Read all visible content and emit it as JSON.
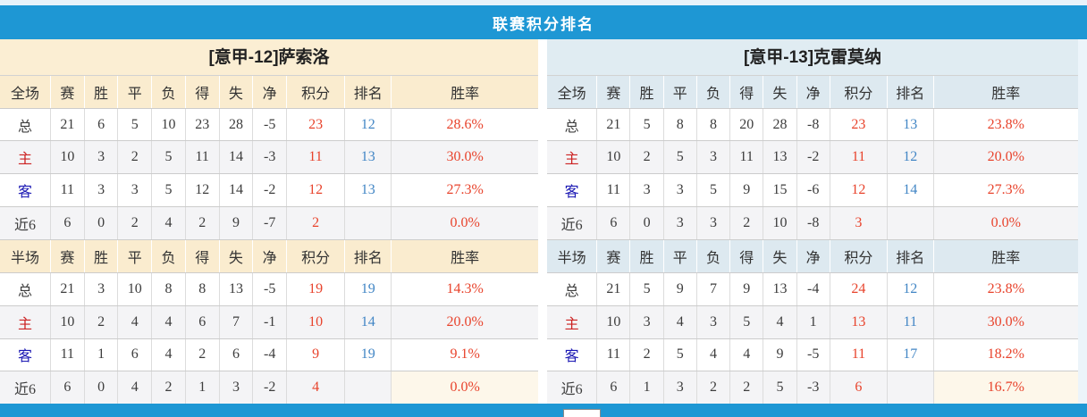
{
  "title_bar": {
    "title": "联赛积分排名"
  },
  "headers": {
    "stats": [
      "赛",
      "胜",
      "平",
      "负",
      "得",
      "失",
      "净"
    ],
    "points": "积分",
    "rank": "排名",
    "rate": "胜率"
  },
  "colors": {
    "accent_blue": "#1e97d4",
    "left_header_bg": "#fbeed3",
    "right_header_bg": "#e0ecf2",
    "points_red": "#e8432c",
    "rank_blue": "#4286c5",
    "home_label_red": "#cc2222",
    "away_label_blue": "#1a17b3",
    "row_alt_gray": "#f4f4f6",
    "rate_highlight_bg": "#fdf7ea"
  },
  "tables": [
    {
      "team_title": "[意甲-12]萨索洛",
      "sections": [
        {
          "scope_label": "全场",
          "rows": [
            {
              "label": "总",
              "label_class": "lab-total",
              "stats": [
                "21",
                "6",
                "5",
                "10",
                "23",
                "28",
                "-5"
              ],
              "points": "23",
              "rank": "12",
              "rate": "28.6%",
              "rate_highlight": false
            },
            {
              "label": "主",
              "label_class": "lab-home",
              "stats": [
                "10",
                "3",
                "2",
                "5",
                "11",
                "14",
                "-3"
              ],
              "points": "11",
              "rank": "13",
              "rate": "30.0%",
              "rate_highlight": false
            },
            {
              "label": "客",
              "label_class": "lab-away",
              "stats": [
                "11",
                "3",
                "3",
                "5",
                "12",
                "14",
                "-2"
              ],
              "points": "12",
              "rank": "13",
              "rate": "27.3%",
              "rate_highlight": false
            },
            {
              "label": "近6",
              "label_class": "lab-recent",
              "stats": [
                "6",
                "0",
                "2",
                "4",
                "2",
                "9",
                "-7"
              ],
              "points": "2",
              "rank": "",
              "rate": "0.0%",
              "rate_highlight": false
            }
          ]
        },
        {
          "scope_label": "半场",
          "rows": [
            {
              "label": "总",
              "label_class": "lab-total",
              "stats": [
                "21",
                "3",
                "10",
                "8",
                "8",
                "13",
                "-5"
              ],
              "points": "19",
              "rank": "19",
              "rate": "14.3%",
              "rate_highlight": false
            },
            {
              "label": "主",
              "label_class": "lab-home",
              "stats": [
                "10",
                "2",
                "4",
                "4",
                "6",
                "7",
                "-1"
              ],
              "points": "10",
              "rank": "14",
              "rate": "20.0%",
              "rate_highlight": false
            },
            {
              "label": "客",
              "label_class": "lab-away",
              "stats": [
                "11",
                "1",
                "6",
                "4",
                "2",
                "6",
                "-4"
              ],
              "points": "9",
              "rank": "19",
              "rate": "9.1%",
              "rate_highlight": false
            },
            {
              "label": "近6",
              "label_class": "lab-recent",
              "stats": [
                "6",
                "0",
                "4",
                "2",
                "1",
                "3",
                "-2"
              ],
              "points": "4",
              "rank": "",
              "rate": "0.0%",
              "rate_highlight": true
            }
          ]
        }
      ]
    },
    {
      "team_title": "[意甲-13]克雷莫纳",
      "sections": [
        {
          "scope_label": "全场",
          "rows": [
            {
              "label": "总",
              "label_class": "lab-total",
              "stats": [
                "21",
                "5",
                "8",
                "8",
                "20",
                "28",
                "-8"
              ],
              "points": "23",
              "rank": "13",
              "rate": "23.8%",
              "rate_highlight": false
            },
            {
              "label": "主",
              "label_class": "lab-home",
              "stats": [
                "10",
                "2",
                "5",
                "3",
                "11",
                "13",
                "-2"
              ],
              "points": "11",
              "rank": "12",
              "rate": "20.0%",
              "rate_highlight": false
            },
            {
              "label": "客",
              "label_class": "lab-away",
              "stats": [
                "11",
                "3",
                "3",
                "5",
                "9",
                "15",
                "-6"
              ],
              "points": "12",
              "rank": "14",
              "rate": "27.3%",
              "rate_highlight": false
            },
            {
              "label": "近6",
              "label_class": "lab-recent",
              "stats": [
                "6",
                "0",
                "3",
                "3",
                "2",
                "10",
                "-8"
              ],
              "points": "3",
              "rank": "",
              "rate": "0.0%",
              "rate_highlight": false
            }
          ]
        },
        {
          "scope_label": "半场",
          "rows": [
            {
              "label": "总",
              "label_class": "lab-total",
              "stats": [
                "21",
                "5",
                "9",
                "7",
                "9",
                "13",
                "-4"
              ],
              "points": "24",
              "rank": "12",
              "rate": "23.8%",
              "rate_highlight": false
            },
            {
              "label": "主",
              "label_class": "lab-home",
              "stats": [
                "10",
                "3",
                "4",
                "3",
                "5",
                "4",
                "1"
              ],
              "points": "13",
              "rank": "11",
              "rate": "30.0%",
              "rate_highlight": false
            },
            {
              "label": "客",
              "label_class": "lab-away",
              "stats": [
                "11",
                "2",
                "5",
                "4",
                "4",
                "9",
                "-5"
              ],
              "points": "11",
              "rank": "17",
              "rate": "18.2%",
              "rate_highlight": false
            },
            {
              "label": "近6",
              "label_class": "lab-recent",
              "stats": [
                "6",
                "1",
                "3",
                "2",
                "2",
                "5",
                "-3"
              ],
              "points": "6",
              "rank": "",
              "rate": "16.7%",
              "rate_highlight": true
            }
          ]
        }
      ]
    }
  ]
}
